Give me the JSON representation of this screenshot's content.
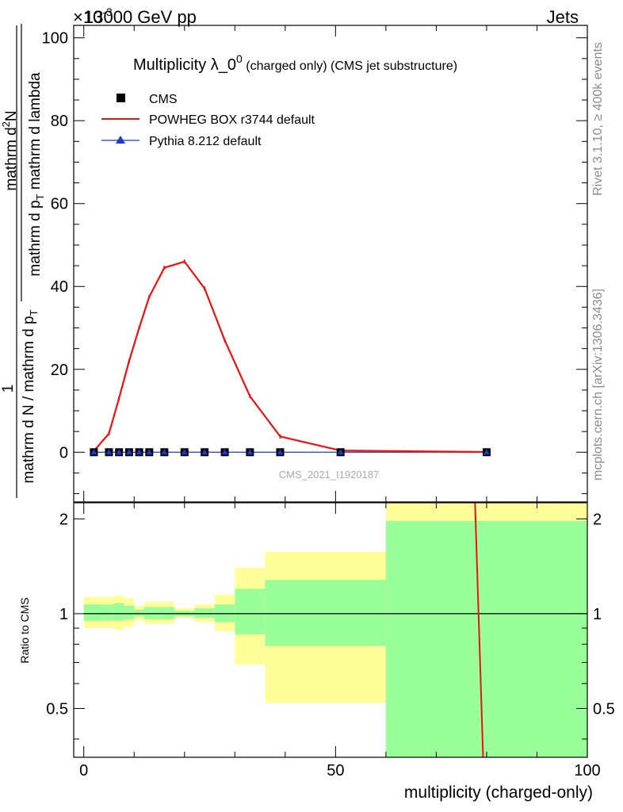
{
  "header": {
    "exponent_label": "×10",
    "exponent_sup": "-3",
    "beam_label": "13000 GeV pp",
    "process_label": "Jets"
  },
  "side_labels": {
    "rivet": "Rivet 3.1.10, ≥ 400k events",
    "mcplots": "mcplots.cern.ch [arXiv:1306.3436]"
  },
  "watermark": "CMS_2021_I1920187",
  "chart_data": [
    {
      "type": "line",
      "title_main": "Multiplicity λ_0",
      "title_sup": "0",
      "title_suffix": "(charged only) (CMS jet substructure)",
      "ylabel_numerator": "1",
      "ylabel_denominator": "mathrm d N / mathrm d p",
      "ylabel_inner_numerator": "mathrm d",
      "ylabel_inner_sup": "2",
      "ylabel_inner_rest": "N",
      "ylabel_inner_denominator": "mathrm d p",
      "ylabel_inner_sub": "T",
      "ylabel_inner_tail": "mathrm d lambda",
      "xlim": [
        -2,
        100
      ],
      "ylim": [
        -12,
        103
      ],
      "yticks": [
        0,
        20,
        40,
        60,
        80,
        100
      ],
      "series": [
        {
          "name": "CMS",
          "color": "#000000",
          "marker": "square",
          "x": [
            2,
            5,
            7,
            9,
            11,
            13,
            16,
            20,
            24,
            28,
            33,
            39,
            51,
            80
          ],
          "y": [
            0,
            0,
            0,
            0,
            0,
            0,
            0,
            0,
            0,
            0,
            0,
            0,
            0,
            0
          ]
        },
        {
          "name": "POWHEG BOX r3744 default",
          "color": "#ee1111",
          "marker": "none",
          "x": [
            2,
            5,
            7,
            9,
            11,
            13,
            16,
            20,
            24,
            28,
            33,
            39,
            51,
            80
          ],
          "y": [
            0.3,
            4.5,
            13,
            22,
            30,
            37.5,
            44.5,
            46,
            39.5,
            27,
            13.5,
            3.8,
            0.4,
            0.05
          ]
        },
        {
          "name": "Pythia 8.212 default",
          "color": "#1a3bcc",
          "marker": "triangle",
          "x": [
            2,
            5,
            7,
            9,
            11,
            13,
            16,
            20,
            24,
            28,
            33,
            39,
            51,
            80
          ],
          "y": [
            0,
            0,
            0,
            0,
            0,
            0,
            0,
            0,
            0,
            0,
            0,
            0,
            0,
            0
          ]
        }
      ]
    },
    {
      "type": "area",
      "ylabel": "Ratio to CMS",
      "xlabel": "multiplicity (charged-only)",
      "xlim": [
        -2,
        100
      ],
      "ylim": [
        0.35,
        2.25
      ],
      "xticks": [
        0,
        50,
        100
      ],
      "yticks": [
        0.5,
        1,
        2
      ],
      "bins": [
        {
          "lo": 0,
          "hi": 4,
          "y_lo": 0.9,
          "y_hi": 1.13,
          "g_lo": 0.95,
          "g_hi": 1.07
        },
        {
          "lo": 4,
          "hi": 6,
          "y_lo": 0.9,
          "y_hi": 1.13,
          "g_lo": 0.95,
          "g_hi": 1.07
        },
        {
          "lo": 6,
          "hi": 8,
          "y_lo": 0.89,
          "y_hi": 1.14,
          "g_lo": 0.95,
          "g_hi": 1.08
        },
        {
          "lo": 8,
          "hi": 10,
          "y_lo": 0.91,
          "y_hi": 1.12,
          "g_lo": 0.96,
          "g_hi": 1.06
        },
        {
          "lo": 10,
          "hi": 12,
          "y_lo": 0.95,
          "y_hi": 1.06,
          "g_lo": 0.98,
          "g_hi": 1.03
        },
        {
          "lo": 12,
          "hi": 14,
          "y_lo": 0.93,
          "y_hi": 1.09,
          "g_lo": 0.96,
          "g_hi": 1.05
        },
        {
          "lo": 14,
          "hi": 18,
          "y_lo": 0.93,
          "y_hi": 1.09,
          "g_lo": 0.96,
          "g_hi": 1.05
        },
        {
          "lo": 18,
          "hi": 22,
          "y_lo": 0.97,
          "y_hi": 1.04,
          "g_lo": 0.98,
          "g_hi": 1.02
        },
        {
          "lo": 22,
          "hi": 26,
          "y_lo": 0.94,
          "y_hi": 1.07,
          "g_lo": 0.97,
          "g_hi": 1.04
        },
        {
          "lo": 26,
          "hi": 30,
          "y_lo": 0.88,
          "y_hi": 1.15,
          "g_lo": 0.94,
          "g_hi": 1.07
        },
        {
          "lo": 30,
          "hi": 36,
          "y_lo": 0.69,
          "y_hi": 1.4,
          "g_lo": 0.86,
          "g_hi": 1.2
        },
        {
          "lo": 36,
          "hi": 60,
          "y_lo": 0.52,
          "y_hi": 1.57,
          "g_lo": 0.79,
          "g_hi": 1.28
        },
        {
          "lo": 60,
          "hi": 100,
          "y_lo": 0.35,
          "y_hi": 2.25,
          "g_lo": 0.35,
          "g_hi": 1.97
        }
      ],
      "series": [
        {
          "name": "POWHEG BOX r3744 default",
          "color": "#ee1111",
          "x": [
            77.7,
            79.3
          ],
          "y": [
            2.25,
            0.35
          ]
        },
        {
          "name": "Pythia 8.212 default",
          "color": "#1a3bcc",
          "x": [
            0,
            100
          ],
          "y": [
            1,
            1
          ]
        }
      ]
    }
  ]
}
